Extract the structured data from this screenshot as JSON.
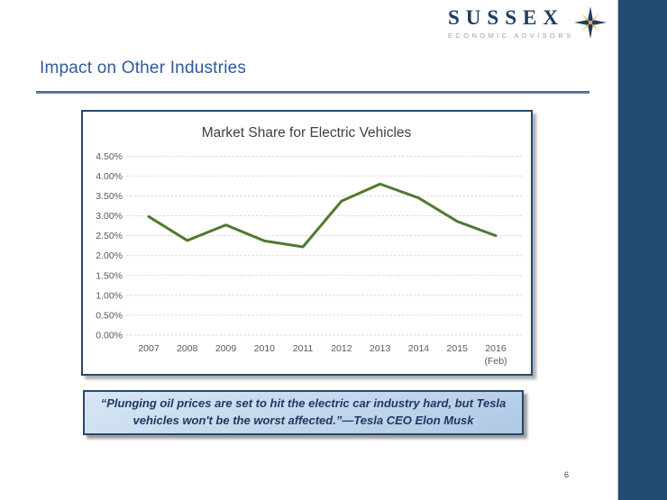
{
  "logo": {
    "name": "SUSSEX",
    "subtitle": "ECONOMIC ADVISORS",
    "icon": "compass-star",
    "colors": {
      "name_navy": "#203C62",
      "subtitle_gray": "#99A1A9",
      "star_gold": "#E4B33C"
    }
  },
  "header": {
    "title": "Impact on Other Industries",
    "title_color": "#2D5B9B",
    "rule_color": "#2F5C96"
  },
  "chart_data": {
    "type": "line",
    "title": "Market Share for Electric Vehicles",
    "categories": [
      "2007",
      "2008",
      "2009",
      "2010",
      "2011",
      "2012",
      "2013",
      "2014",
      "2015",
      "2016"
    ],
    "last_category_note": "(Feb)",
    "values": [
      2.98,
      2.38,
      2.77,
      2.37,
      2.22,
      3.37,
      3.8,
      3.45,
      2.86,
      2.5
    ],
    "unit": "percent",
    "xlabel": "",
    "ylabel": "",
    "ylim": [
      0,
      4.5
    ],
    "ytick_step": 0.5,
    "ytick_labels": [
      "0.00%",
      "0.50%",
      "1.00%",
      "1.50%",
      "2.00%",
      "2.50%",
      "3.00%",
      "3.50%",
      "4.00%",
      "4.50%"
    ],
    "grid": "horizontal-dashed",
    "legend": "none",
    "line_color": "#4F7A2E",
    "grid_color": "#D9D9D9",
    "title_color": "#404040",
    "tick_color": "#595959"
  },
  "quote": {
    "text": "“Plunging oil prices are set to hit the electric car industry hard, but Tesla vehicles won't be the worst affected.”—Tesla CEO Elon Musk",
    "background": "#C2D7EC",
    "border_color": "#28486E",
    "text_color": "#1F3864"
  },
  "footer": {
    "page_number": "6"
  }
}
